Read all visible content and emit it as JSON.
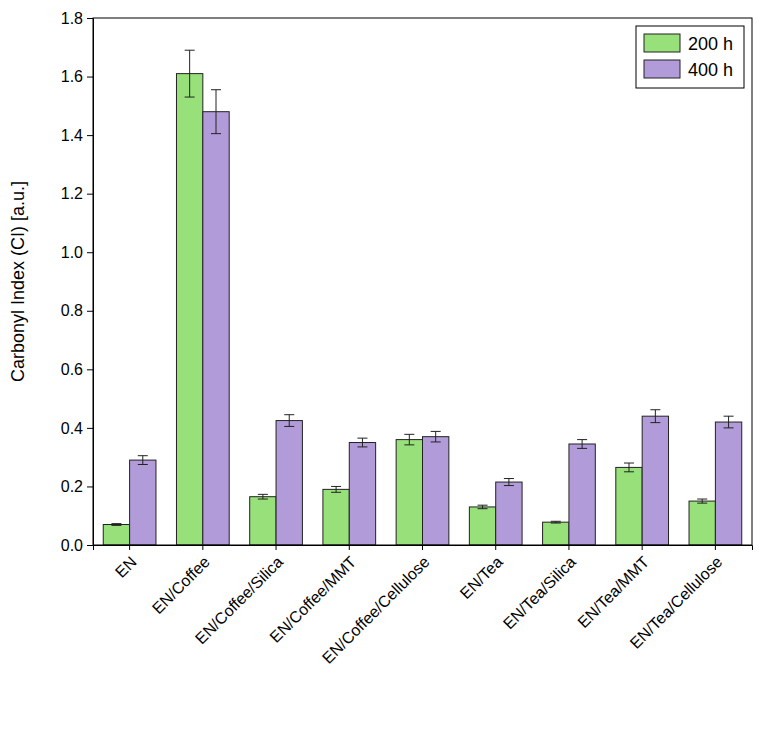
{
  "chart_data": {
    "type": "bar",
    "y_label": "Carbonyl Index (CI) [a.u.]",
    "categories": [
      "EN",
      "EN/Coffee",
      "EN/Coffee/Silica",
      "EN/Coffee/MMT",
      "EN/Coffee/Cellulose",
      "EN/Tea",
      "EN/Tea/Silica",
      "EN/Tea/MMT",
      "EN/Tea/Cellulose"
    ],
    "series": [
      {
        "name": "200 h",
        "color": "#98e07a",
        "values": [
          0.07,
          1.61,
          0.165,
          0.19,
          0.36,
          0.13,
          0.078,
          0.265,
          0.15
        ],
        "errors": [
          0.003,
          0.08,
          0.008,
          0.01,
          0.018,
          0.006,
          0.003,
          0.015,
          0.007
        ]
      },
      {
        "name": "400 h",
        "color": "#b19cd9",
        "values": [
          0.29,
          1.48,
          0.425,
          0.35,
          0.37,
          0.215,
          0.345,
          0.44,
          0.42
        ],
        "errors": [
          0.015,
          0.075,
          0.02,
          0.015,
          0.018,
          0.012,
          0.015,
          0.022,
          0.02
        ]
      }
    ],
    "ylim": [
      0,
      1.8
    ],
    "yticks": [
      {
        "value": 0,
        "label": "0.0"
      },
      0.2,
      0.4,
      0.6,
      0.8,
      {
        "value": 1,
        "label": "1.0"
      },
      1.2,
      1.4,
      1.6,
      1.8
    ],
    "legend": "upper right",
    "grid": false
  }
}
